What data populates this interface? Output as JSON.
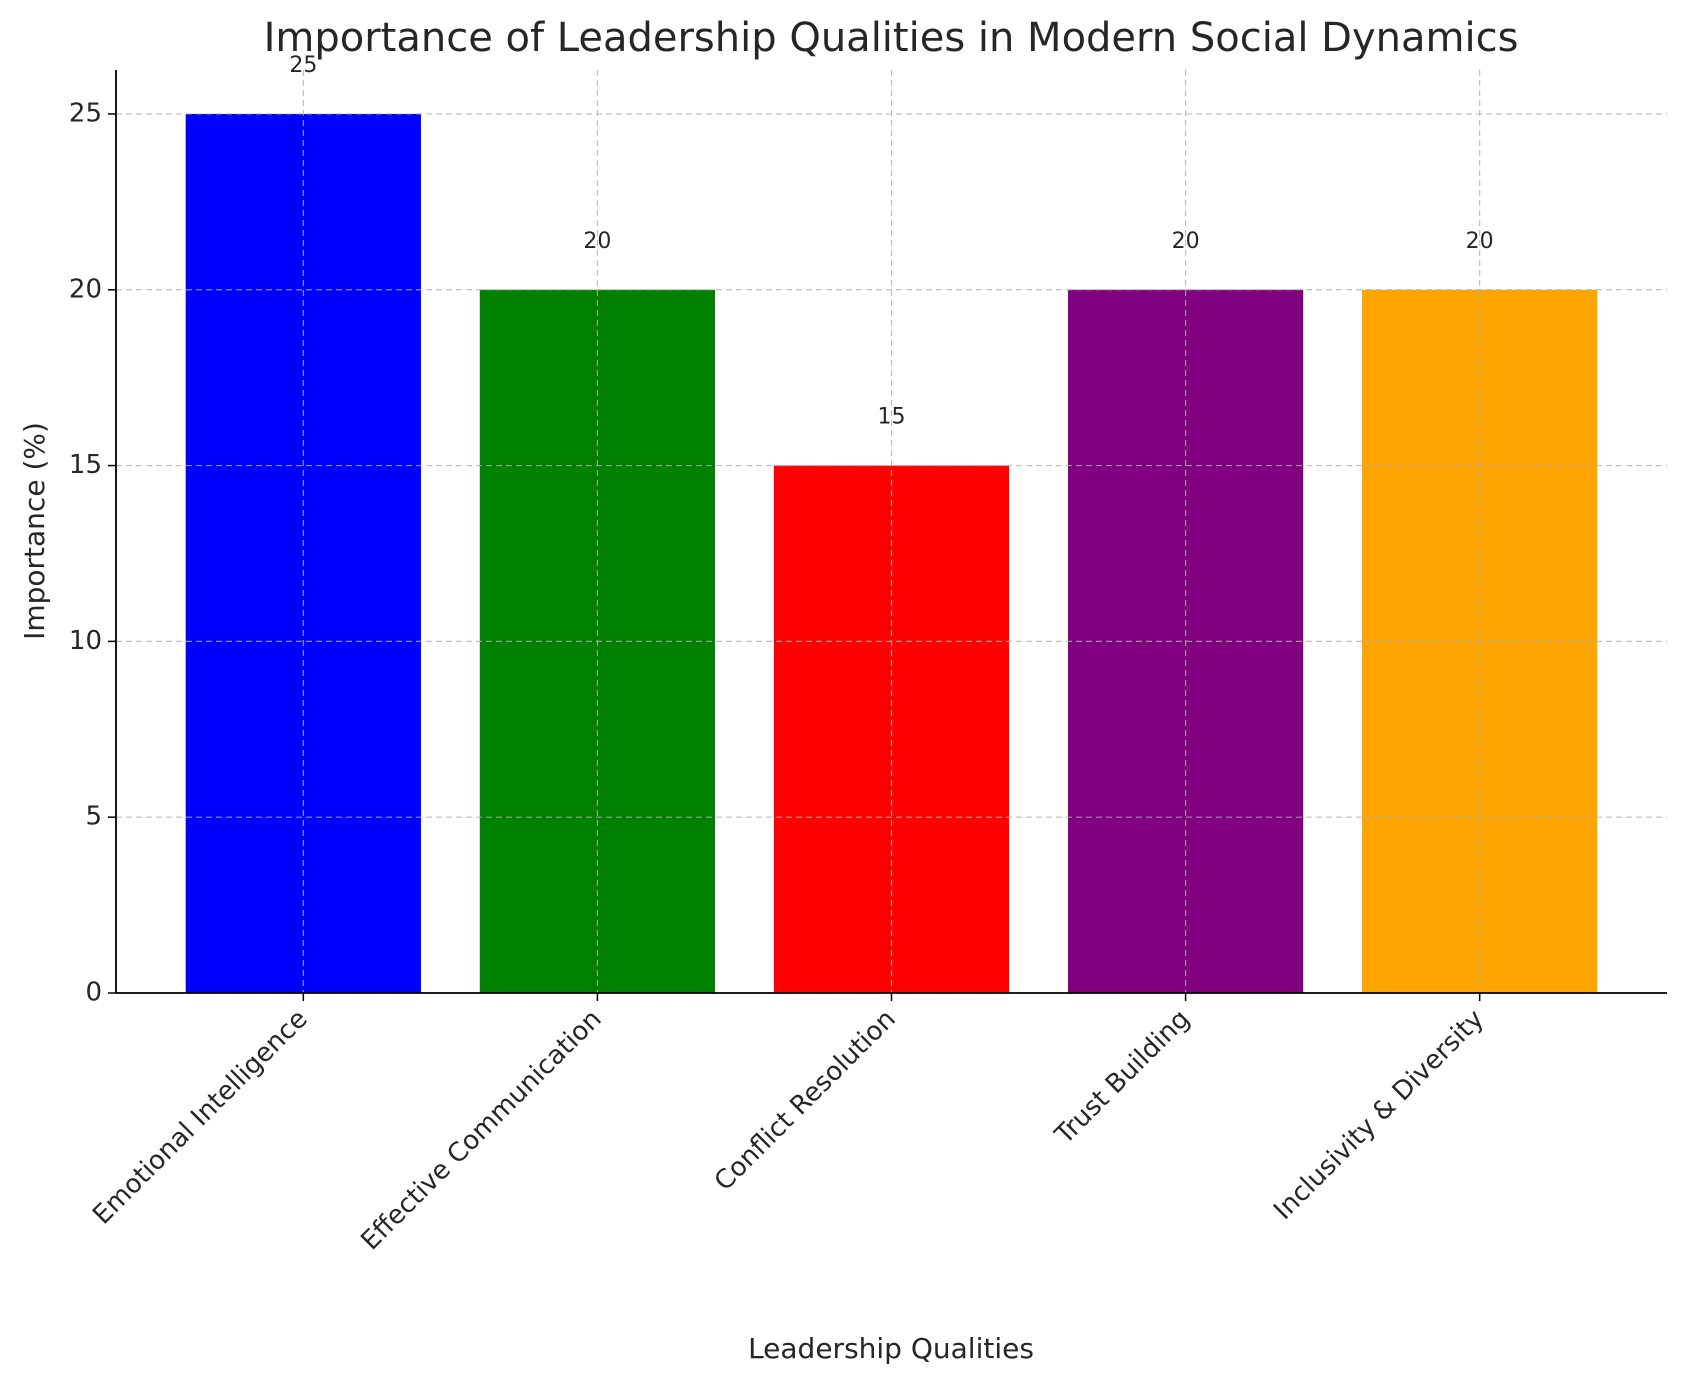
{
  "chart_data": {
    "type": "bar",
    "title": "Importance of Leadership Qualities in Modern Social Dynamics",
    "x_label": "Leadership Qualities",
    "y_label": "Importance (%)",
    "categories": [
      "Emotional Intelligence",
      "Effective Communication",
      "Conflict Resolution",
      "Trust Building",
      "Inclusivity & Diversity"
    ],
    "values": [
      25,
      20,
      15,
      20,
      20
    ],
    "colors": [
      "#0000ff",
      "#008000",
      "#ff0000",
      "#800080",
      "#ffa500"
    ],
    "ylim": [
      0,
      26.25
    ],
    "yticks": [
      0,
      5,
      10,
      15,
      20,
      25
    ],
    "grid": true
  }
}
